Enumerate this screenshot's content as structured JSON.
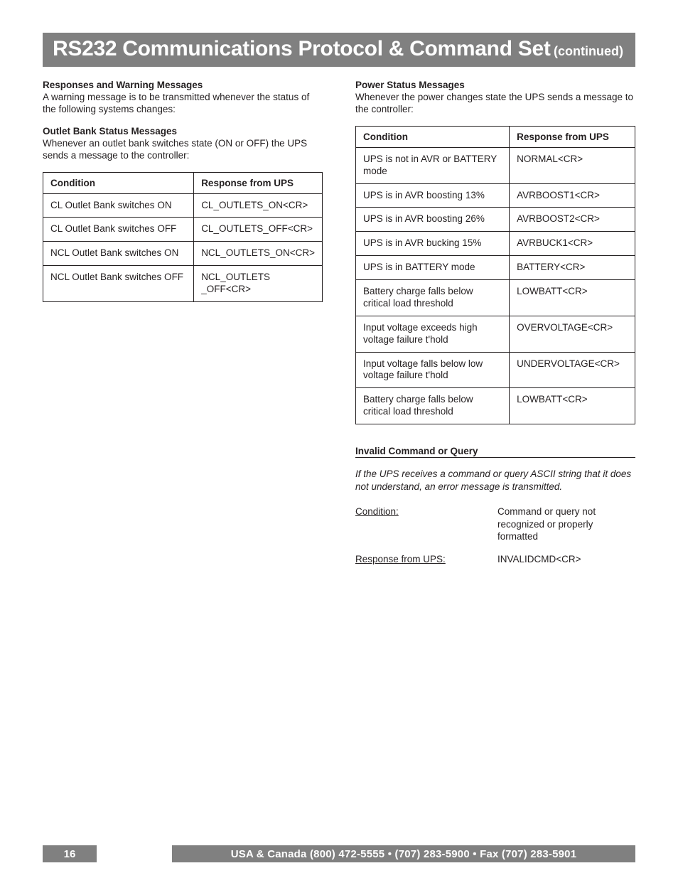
{
  "title": {
    "main": "RS232 Communications Protocol & Command Set",
    "cont": "(continued)"
  },
  "left": {
    "h1": "Responses and Warning Messages",
    "p1": "A warning message is to be transmitted whenever the status of the following systems changes:",
    "h2": "Outlet Bank Status Messages",
    "p2": "Whenever an outlet bank switches state (ON or OFF) the UPS sends a message to the controller:",
    "table": {
      "head": {
        "c1": "Condition",
        "c2": "Response from UPS"
      },
      "rows": [
        {
          "c1": "CL Outlet Bank switches ON",
          "c2": "CL_OUTLETS_ON<CR>"
        },
        {
          "c1": "CL Outlet Bank switches OFF",
          "c2": "CL_OUTLETS_OFF<CR>"
        },
        {
          "c1": "NCL Outlet Bank switches ON",
          "c2": "NCL_OUTLETS_ON<CR>"
        },
        {
          "c1": "NCL Outlet Bank switches OFF",
          "c2": "NCL_OUTLETS _OFF<CR>"
        }
      ]
    }
  },
  "right": {
    "h1": "Power Status Messages",
    "p1": "Whenever the power changes state the UPS sends a message to the controller:",
    "table": {
      "head": {
        "c1": "Condition",
        "c2": "Response from UPS"
      },
      "rows": [
        {
          "c1": "UPS is not in AVR or BATTERY mode",
          "c2": "NORMAL<CR>"
        },
        {
          "c1": "UPS is in AVR boosting 13%",
          "c2": "AVRBOOST1<CR>"
        },
        {
          "c1": "UPS is in AVR boosting 26%",
          "c2": "AVRBOOST2<CR>"
        },
        {
          "c1": "UPS is in AVR bucking 15%",
          "c2": "AVRBUCK1<CR>"
        },
        {
          "c1": "UPS is in BATTERY mode",
          "c2": "BATTERY<CR>"
        },
        {
          "c1": "Battery charge falls below critical load threshold",
          "c2": "LOWBATT<CR>"
        },
        {
          "c1": "Input voltage exceeds high voltage failure t'hold",
          "c2": "OVERVOLTAGE<CR>"
        },
        {
          "c1": "Input voltage falls below low voltage failure t'hold",
          "c2": "UNDERVOLTAGE<CR>"
        },
        {
          "c1": "Battery charge falls below critical load threshold",
          "c2": "LOWBATT<CR>"
        }
      ]
    },
    "invalid": {
      "heading": "Invalid Command or Query",
      "intro": "If the UPS receives a command or query ASCII string that it does not understand, an error message is transmitted.",
      "row1": {
        "label": "Condition:",
        "value": "Command or query not recognized or properly formatted"
      },
      "row2": {
        "label": "Response from UPS:",
        "value": "INVALIDCMD<CR>"
      }
    }
  },
  "footer": {
    "page": "16",
    "text": "USA & Canada (800) 472-5555  •  (707) 283-5900  •  Fax (707) 283-5901"
  }
}
